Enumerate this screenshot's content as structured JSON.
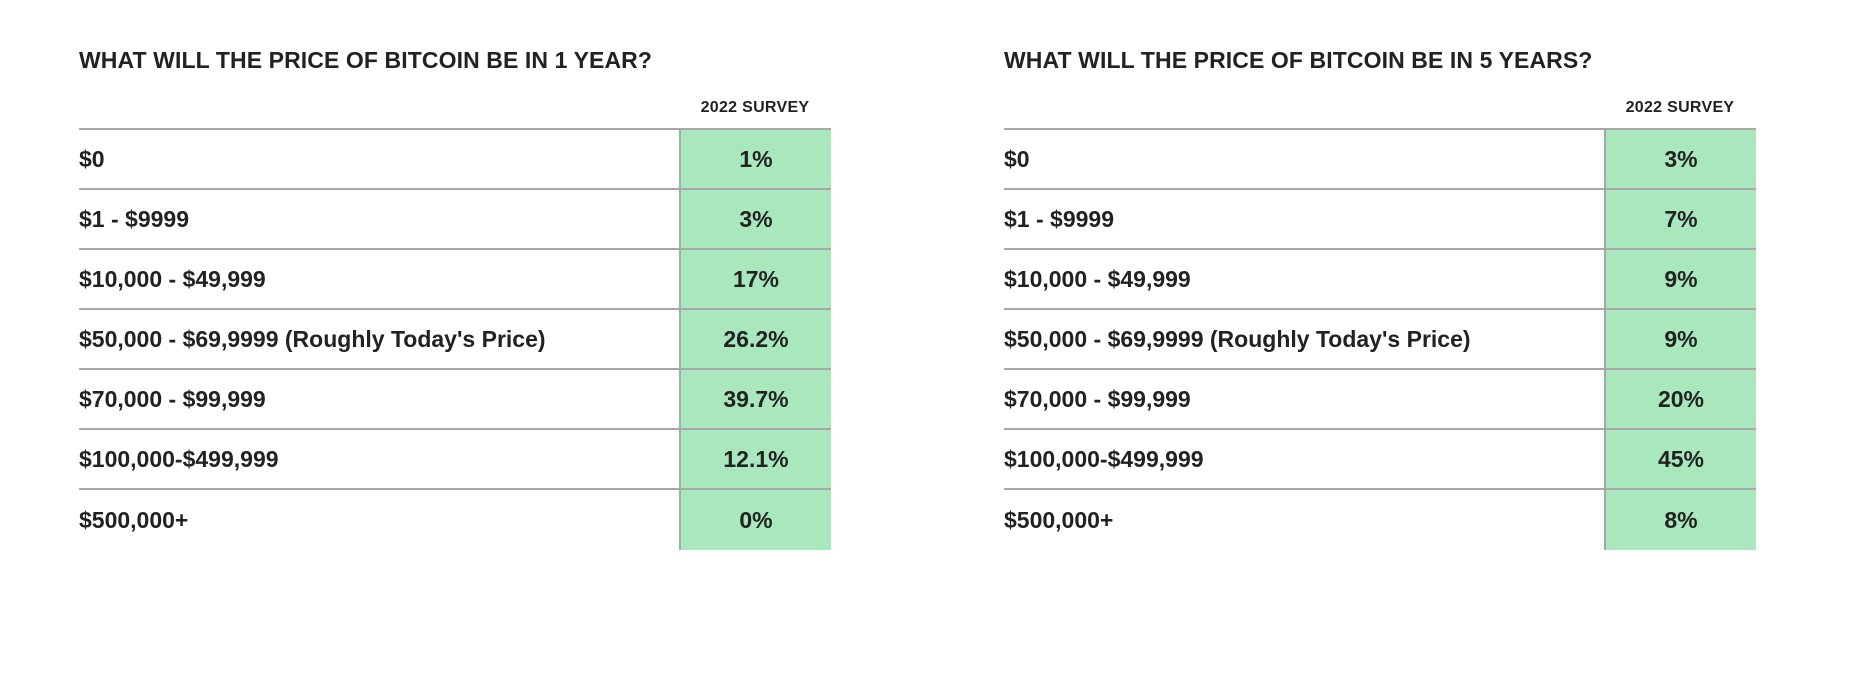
{
  "chart_data": [
    {
      "type": "table",
      "title": "WHAT WILL THE PRICE OF BITCOIN BE IN 1 YEAR?",
      "column_header": "2022 SURVEY",
      "highlight_color": "#a8e8bc",
      "rows": [
        {
          "label": "$0",
          "value": "1%"
        },
        {
          "label": "$1 - $9999",
          "value": "3%"
        },
        {
          "label": "$10,000 - $49,999",
          "value": "17%"
        },
        {
          "label": "$50,000 - $69,9999 (Roughly Today's Price)",
          "value": "26.2%"
        },
        {
          "label": "$70,000 - $99,999",
          "value": "39.7%"
        },
        {
          "label": "$100,000-$499,999",
          "value": "12.1%"
        },
        {
          "label": "$500,000+",
          "value": "0%"
        }
      ]
    },
    {
      "type": "table",
      "title": "WHAT WILL THE PRICE OF BITCOIN BE IN 5 YEARS?",
      "column_header": "2022 SURVEY",
      "highlight_color": "#a8e8bc",
      "rows": [
        {
          "label": "$0",
          "value": "3%"
        },
        {
          "label": "$1 - $9999",
          "value": "7%"
        },
        {
          "label": "$10,000 - $49,999",
          "value": "9%"
        },
        {
          "label": "$50,000 - $69,9999 (Roughly Today's Price)",
          "value": "9%"
        },
        {
          "label": "$70,000 - $99,999",
          "value": "20%"
        },
        {
          "label": "$100,000-$499,999",
          "value": "45%"
        },
        {
          "label": "$500,000+",
          "value": "8%"
        }
      ]
    }
  ]
}
